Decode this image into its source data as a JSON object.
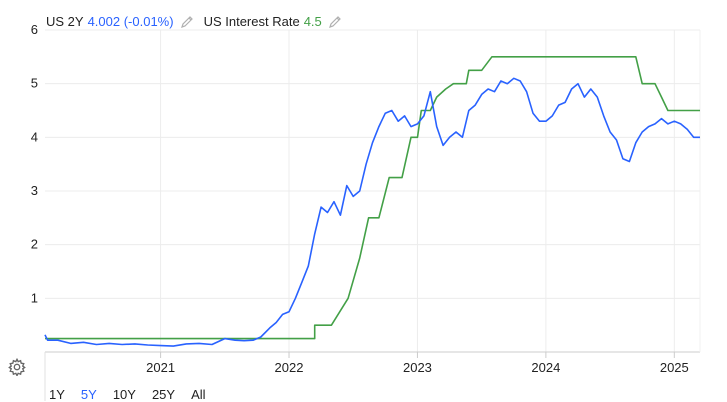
{
  "legend": {
    "series1": {
      "name": "US 2Y",
      "value": "4.002 (-0.01%)",
      "color": "#2962ff"
    },
    "series2": {
      "name": "US Interest Rate",
      "value": "4.5",
      "color": "#43a047"
    }
  },
  "ranges": [
    "1Y",
    "5Y",
    "10Y",
    "25Y",
    "All"
  ],
  "active_range": "5Y",
  "chart_data": {
    "type": "line",
    "xlim": [
      2020.1,
      2025.2
    ],
    "ylim": [
      0,
      6
    ],
    "x_ticks": [
      {
        "value": 2021,
        "label": "2021"
      },
      {
        "value": 2022,
        "label": "2022"
      },
      {
        "value": 2023,
        "label": "2023"
      },
      {
        "value": 2024,
        "label": "2024"
      },
      {
        "value": 2025,
        "label": "2025"
      }
    ],
    "y_ticks": [
      {
        "value": 1,
        "label": "1"
      },
      {
        "value": 2,
        "label": "2"
      },
      {
        "value": 3,
        "label": "3"
      },
      {
        "value": 4,
        "label": "4"
      },
      {
        "value": 5,
        "label": "5"
      },
      {
        "value": 6,
        "label": "6"
      }
    ],
    "grid": true,
    "series": [
      {
        "name": "US 2Y",
        "color": "#2962ff",
        "points": [
          [
            2020.1,
            0.32
          ],
          [
            2020.12,
            0.22
          ],
          [
            2020.2,
            0.22
          ],
          [
            2020.3,
            0.16
          ],
          [
            2020.4,
            0.18
          ],
          [
            2020.5,
            0.14
          ],
          [
            2020.6,
            0.16
          ],
          [
            2020.7,
            0.14
          ],
          [
            2020.8,
            0.15
          ],
          [
            2020.9,
            0.13
          ],
          [
            2021.0,
            0.12
          ],
          [
            2021.1,
            0.11
          ],
          [
            2021.2,
            0.15
          ],
          [
            2021.3,
            0.16
          ],
          [
            2021.4,
            0.14
          ],
          [
            2021.5,
            0.25
          ],
          [
            2021.58,
            0.22
          ],
          [
            2021.65,
            0.21
          ],
          [
            2021.72,
            0.22
          ],
          [
            2021.78,
            0.28
          ],
          [
            2021.85,
            0.45
          ],
          [
            2021.9,
            0.55
          ],
          [
            2021.95,
            0.7
          ],
          [
            2022.0,
            0.75
          ],
          [
            2022.05,
            1.0
          ],
          [
            2022.1,
            1.3
          ],
          [
            2022.15,
            1.6
          ],
          [
            2022.2,
            2.2
          ],
          [
            2022.25,
            2.7
          ],
          [
            2022.3,
            2.6
          ],
          [
            2022.35,
            2.8
          ],
          [
            2022.4,
            2.55
          ],
          [
            2022.45,
            3.1
          ],
          [
            2022.5,
            2.9
          ],
          [
            2022.55,
            3.0
          ],
          [
            2022.6,
            3.5
          ],
          [
            2022.65,
            3.9
          ],
          [
            2022.7,
            4.2
          ],
          [
            2022.75,
            4.45
          ],
          [
            2022.8,
            4.5
          ],
          [
            2022.85,
            4.3
          ],
          [
            2022.9,
            4.4
          ],
          [
            2022.95,
            4.2
          ],
          [
            2023.0,
            4.25
          ],
          [
            2023.05,
            4.4
          ],
          [
            2023.1,
            4.85
          ],
          [
            2023.15,
            4.2
          ],
          [
            2023.2,
            3.85
          ],
          [
            2023.25,
            4.0
          ],
          [
            2023.3,
            4.1
          ],
          [
            2023.35,
            4.0
          ],
          [
            2023.4,
            4.5
          ],
          [
            2023.45,
            4.6
          ],
          [
            2023.5,
            4.8
          ],
          [
            2023.55,
            4.9
          ],
          [
            2023.6,
            4.85
          ],
          [
            2023.65,
            5.05
          ],
          [
            2023.7,
            5.0
          ],
          [
            2023.75,
            5.1
          ],
          [
            2023.8,
            5.05
          ],
          [
            2023.85,
            4.85
          ],
          [
            2023.9,
            4.45
          ],
          [
            2023.95,
            4.3
          ],
          [
            2024.0,
            4.3
          ],
          [
            2024.05,
            4.4
          ],
          [
            2024.1,
            4.6
          ],
          [
            2024.15,
            4.65
          ],
          [
            2024.2,
            4.9
          ],
          [
            2024.25,
            5.0
          ],
          [
            2024.3,
            4.75
          ],
          [
            2024.35,
            4.9
          ],
          [
            2024.4,
            4.75
          ],
          [
            2024.45,
            4.4
          ],
          [
            2024.5,
            4.1
          ],
          [
            2024.55,
            3.95
          ],
          [
            2024.6,
            3.6
          ],
          [
            2024.65,
            3.55
          ],
          [
            2024.7,
            3.9
          ],
          [
            2024.75,
            4.1
          ],
          [
            2024.8,
            4.2
          ],
          [
            2024.85,
            4.25
          ],
          [
            2024.9,
            4.35
          ],
          [
            2024.95,
            4.25
          ],
          [
            2025.0,
            4.3
          ],
          [
            2025.05,
            4.25
          ],
          [
            2025.1,
            4.15
          ],
          [
            2025.15,
            4.0
          ],
          [
            2025.2,
            4.0
          ]
        ]
      },
      {
        "name": "US Interest Rate",
        "color": "#43a047",
        "points": [
          [
            2020.1,
            0.25
          ],
          [
            2022.2,
            0.25
          ],
          [
            2022.2,
            0.5
          ],
          [
            2022.33,
            0.5
          ],
          [
            2022.46,
            1.0
          ],
          [
            2022.55,
            1.75
          ],
          [
            2022.62,
            2.5
          ],
          [
            2022.7,
            2.5
          ],
          [
            2022.78,
            3.25
          ],
          [
            2022.88,
            3.25
          ],
          [
            2022.95,
            4.0
          ],
          [
            2023.0,
            4.0
          ],
          [
            2023.03,
            4.5
          ],
          [
            2023.1,
            4.5
          ],
          [
            2023.15,
            4.75
          ],
          [
            2023.22,
            4.9
          ],
          [
            2023.28,
            5.0
          ],
          [
            2023.38,
            5.0
          ],
          [
            2023.4,
            5.25
          ],
          [
            2023.5,
            5.25
          ],
          [
            2023.58,
            5.5
          ],
          [
            2024.7,
            5.5
          ],
          [
            2024.75,
            5.0
          ],
          [
            2024.85,
            5.0
          ],
          [
            2024.9,
            4.75
          ],
          [
            2024.95,
            4.5
          ],
          [
            2025.2,
            4.5
          ]
        ]
      }
    ]
  }
}
